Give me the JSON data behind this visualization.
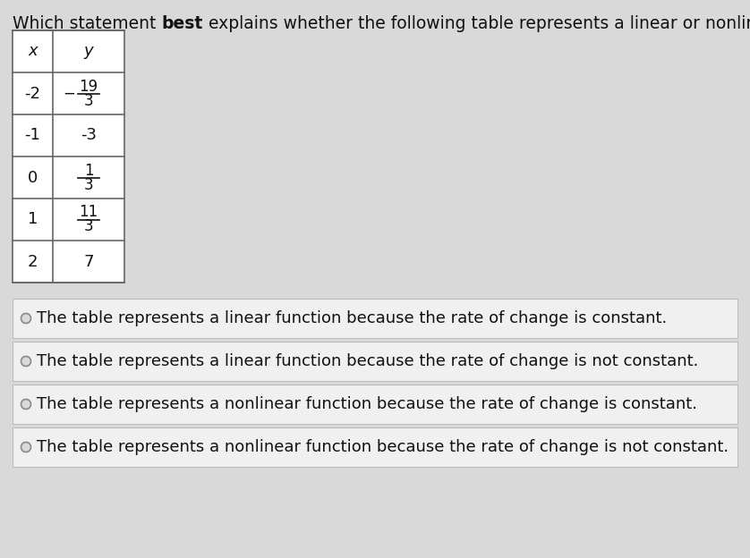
{
  "choices": [
    "The table represents a linear function because the rate of change is constant.",
    "The table represents a linear function because the rate of change is not constant.",
    "The table represents a nonlinear function because the rate of change is constant.",
    "The table represents a nonlinear function because the rate of change is not constant."
  ],
  "bg_color": "#d9d9d9",
  "text_color": "#111111",
  "title_fontsize": 13.5,
  "choice_fontsize": 13,
  "table_fontsize": 13
}
